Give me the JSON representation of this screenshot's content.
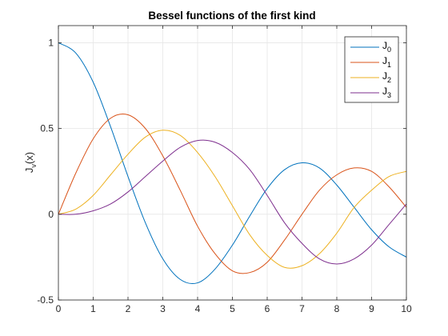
{
  "chart_data": {
    "type": "line",
    "title": "Bessel functions of the first kind",
    "ylabel": {
      "main": "J",
      "sub": "v",
      "suffix": "(x)"
    },
    "xlabel": "",
    "xlim": [
      0,
      10
    ],
    "ylim": [
      -0.5,
      1.1
    ],
    "xticks": [
      0,
      1,
      2,
      3,
      4,
      5,
      6,
      7,
      8,
      9,
      10
    ],
    "yticks": [
      -0.5,
      0,
      0.5,
      1
    ],
    "xtick_labels": [
      "0",
      "1",
      "2",
      "3",
      "4",
      "5",
      "6",
      "7",
      "8",
      "9",
      "10"
    ],
    "ytick_labels": [
      "-0.5",
      "0",
      "0.5",
      "1"
    ],
    "grid": true,
    "legend_placement": "top-right",
    "x": [
      0,
      0.5,
      1,
      1.5,
      2,
      2.5,
      3,
      3.5,
      4,
      4.5,
      5,
      5.5,
      6,
      6.5,
      7,
      7.5,
      8,
      8.5,
      9,
      9.5,
      10
    ],
    "series": [
      {
        "name": "J",
        "sub": "0",
        "color": "#0072BD",
        "values": [
          1.0,
          0.94,
          0.77,
          0.51,
          0.22,
          -0.05,
          -0.26,
          -0.38,
          -0.4,
          -0.32,
          -0.18,
          -0.01,
          0.15,
          0.26,
          0.3,
          0.27,
          0.17,
          0.04,
          -0.09,
          -0.19,
          -0.25
        ]
      },
      {
        "name": "J",
        "sub": "1",
        "color": "#D95319",
        "values": [
          0.0,
          0.24,
          0.44,
          0.56,
          0.58,
          0.5,
          0.34,
          0.14,
          -0.07,
          -0.23,
          -0.33,
          -0.34,
          -0.28,
          -0.15,
          0.0,
          0.14,
          0.23,
          0.27,
          0.25,
          0.16,
          0.04
        ]
      },
      {
        "name": "J",
        "sub": "2",
        "color": "#EDB120",
        "values": [
          0.0,
          0.03,
          0.11,
          0.23,
          0.35,
          0.45,
          0.49,
          0.46,
          0.36,
          0.22,
          0.05,
          -0.12,
          -0.24,
          -0.31,
          -0.3,
          -0.23,
          -0.11,
          0.04,
          0.14,
          0.22,
          0.25
        ]
      },
      {
        "name": "J",
        "sub": "3",
        "color": "#7E2F8E",
        "values": [
          0.0,
          0.0,
          0.02,
          0.06,
          0.13,
          0.22,
          0.31,
          0.39,
          0.43,
          0.42,
          0.36,
          0.26,
          0.11,
          -0.05,
          -0.17,
          -0.26,
          -0.29,
          -0.26,
          -0.18,
          -0.06,
          0.06
        ]
      }
    ]
  }
}
